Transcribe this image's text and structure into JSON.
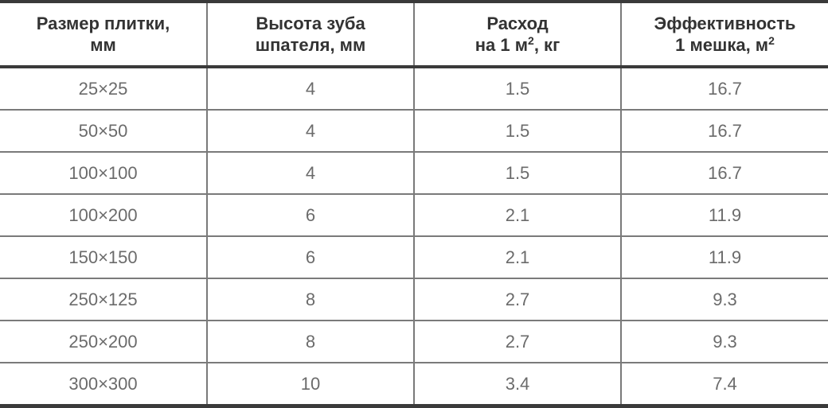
{
  "table": {
    "headers": [
      {
        "line1": "Размер плитки,",
        "line2": "мм",
        "sup": ""
      },
      {
        "line1": "Высота зуба",
        "line2": "шпателя, мм",
        "sup": ""
      },
      {
        "line1": "Расход",
        "line2": "на 1 м",
        "sup": "2",
        "line2_after": ", кг"
      },
      {
        "line1": "Эффективность",
        "line2": "1 мешка, м",
        "sup": "2"
      }
    ],
    "rows": [
      [
        "25×25",
        "4",
        "1.5",
        "16.7"
      ],
      [
        "50×50",
        "4",
        "1.5",
        "16.7"
      ],
      [
        "100×100",
        "4",
        "1.5",
        "16.7"
      ],
      [
        "100×200",
        "6",
        "2.1",
        "11.9"
      ],
      [
        "150×150",
        "6",
        "2.1",
        "11.9"
      ],
      [
        "250×125",
        "8",
        "2.7",
        "9.3"
      ],
      [
        "250×200",
        "8",
        "2.7",
        "9.3"
      ],
      [
        "300×300",
        "10",
        "3.4",
        "7.4"
      ]
    ]
  }
}
